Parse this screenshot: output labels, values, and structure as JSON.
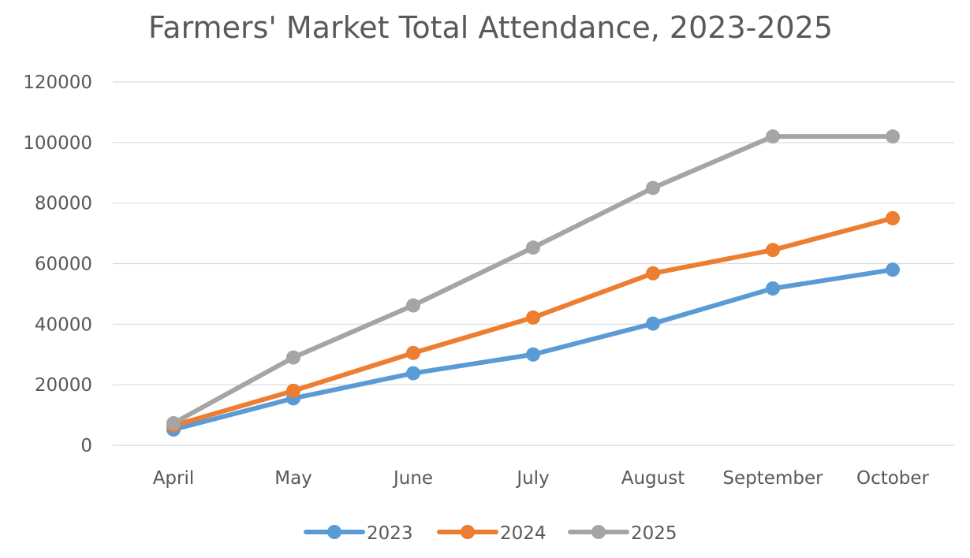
{
  "chart_data": {
    "type": "line",
    "title": "Farmers' Market Total Attendance, 2023-2025",
    "xlabel": "",
    "ylabel": "",
    "categories": [
      "April",
      "May",
      "June",
      "July",
      "August",
      "September",
      "October"
    ],
    "ylim": [
      0,
      120000
    ],
    "yticks": [
      0,
      20000,
      40000,
      60000,
      80000,
      100000,
      120000
    ],
    "ytick_labels": [
      "0",
      "20000",
      "40000",
      "60000",
      "80000",
      "100000",
      "120000"
    ],
    "grid": true,
    "legend_position": "bottom",
    "series": [
      {
        "name": "2023",
        "color": "#5B9BD5",
        "values": [
          5200,
          15500,
          23800,
          30000,
          40200,
          51800,
          58000
        ]
      },
      {
        "name": "2024",
        "color": "#ED7D31",
        "values": [
          6500,
          18000,
          30500,
          42200,
          56800,
          64500,
          75000
        ]
      },
      {
        "name": "2025",
        "color": "#A5A5A5",
        "values": [
          7300,
          29000,
          46200,
          65300,
          85000,
          102000,
          102000
        ]
      }
    ]
  }
}
